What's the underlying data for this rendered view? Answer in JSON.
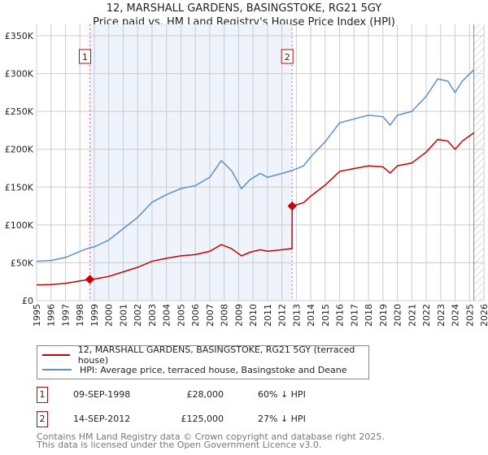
{
  "chart_data": {
    "type": "line",
    "title": [
      "12, MARSHALL GARDENS, BASINGSTOKE, RG21 5GY",
      "Price paid vs. HM Land Registry's House Price Index (HPI)"
    ],
    "xlim": [
      1995,
      2026
    ],
    "ylim": [
      0,
      350000
    ],
    "x_ticks": [
      "1995",
      "1996",
      "1997",
      "1998",
      "1999",
      "2000",
      "2001",
      "2002",
      "2003",
      "2004",
      "2005",
      "2006",
      "2007",
      "2008",
      "2009",
      "2010",
      "2011",
      "2012",
      "2013",
      "2014",
      "2015",
      "2016",
      "2017",
      "2018",
      "2019",
      "2020",
      "2021",
      "2022",
      "2023",
      "2024",
      "2025",
      "2026"
    ],
    "y_ticks": [
      {
        "v": 0,
        "label": "£0"
      },
      {
        "v": 50000,
        "label": "£50K"
      },
      {
        "v": 100000,
        "label": "£100K"
      },
      {
        "v": 150000,
        "label": "£150K"
      },
      {
        "v": 200000,
        "label": "£200K"
      },
      {
        "v": 250000,
        "label": "£250K"
      },
      {
        "v": 300000,
        "label": "£300K"
      },
      {
        "v": 350000,
        "label": "£350K"
      }
    ],
    "grid": true,
    "x": [
      1995,
      1996,
      1997,
      1998,
      1998.69,
      1999,
      2000,
      2001,
      2002,
      2003,
      2004,
      2005,
      2006,
      2007,
      2007.8,
      2008.5,
      2009.2,
      2009.8,
      2010.5,
      2011,
      2012,
      2012.7,
      2012.71,
      2013.5,
      2014,
      2015,
      2016,
      2017,
      2018,
      2019,
      2019.5,
      2020,
      2021,
      2022,
      2022.8,
      2023.5,
      2024,
      2024.5,
      2025.3
    ],
    "series": [
      {
        "name": "12, MARSHALL GARDENS, BASINGSTOKE, RG21 5GY (terraced house)",
        "color": "#cc0000",
        "values": [
          20800,
          21200,
          22800,
          26000,
          28000,
          28400,
          32000,
          38000,
          44000,
          52000,
          56000,
          59200,
          60800,
          65200,
          74000,
          68800,
          59200,
          64000,
          67200,
          65200,
          67200,
          68800,
          125000,
          129400,
          138100,
          152700,
          170800,
          174500,
          178100,
          176700,
          168700,
          178100,
          181800,
          196300,
          213000,
          210800,
          200000,
          210800,
          221700
        ]
      },
      {
        "name": "HPI: Average price, terraced house, Basingstoke and Deane",
        "color": "#5b8fd0",
        "values": [
          52000,
          53000,
          57000,
          65000,
          70000,
          71000,
          80000,
          95000,
          110000,
          130000,
          140000,
          148000,
          152000,
          163000,
          185000,
          172000,
          148000,
          160000,
          168000,
          163000,
          168000,
          172000,
          172000,
          178000,
          190000,
          210000,
          235000,
          240000,
          245000,
          243000,
          232000,
          245000,
          250000,
          270000,
          293000,
          290000,
          275000,
          290000,
          305000
        ]
      }
    ],
    "sales": [
      {
        "id": "1",
        "x": 1998.69,
        "price": 28000,
        "date": "09-SEP-1998",
        "price_label": "£28,000",
        "hpi_label": "60% ↓ HPI"
      },
      {
        "id": "2",
        "x": 2012.71,
        "price": 125000,
        "date": "14-SEP-2012",
        "price_label": "£125,000",
        "hpi_label": "27% ↓ HPI"
      }
    ],
    "shaded_range": [
      1998.69,
      2012.71
    ],
    "forecast_from": 2025.3
  },
  "footer": [
    "Contains HM Land Registry data © Crown copyright and database right 2025.",
    "This data is licensed under the Open Government Licence v3.0."
  ]
}
